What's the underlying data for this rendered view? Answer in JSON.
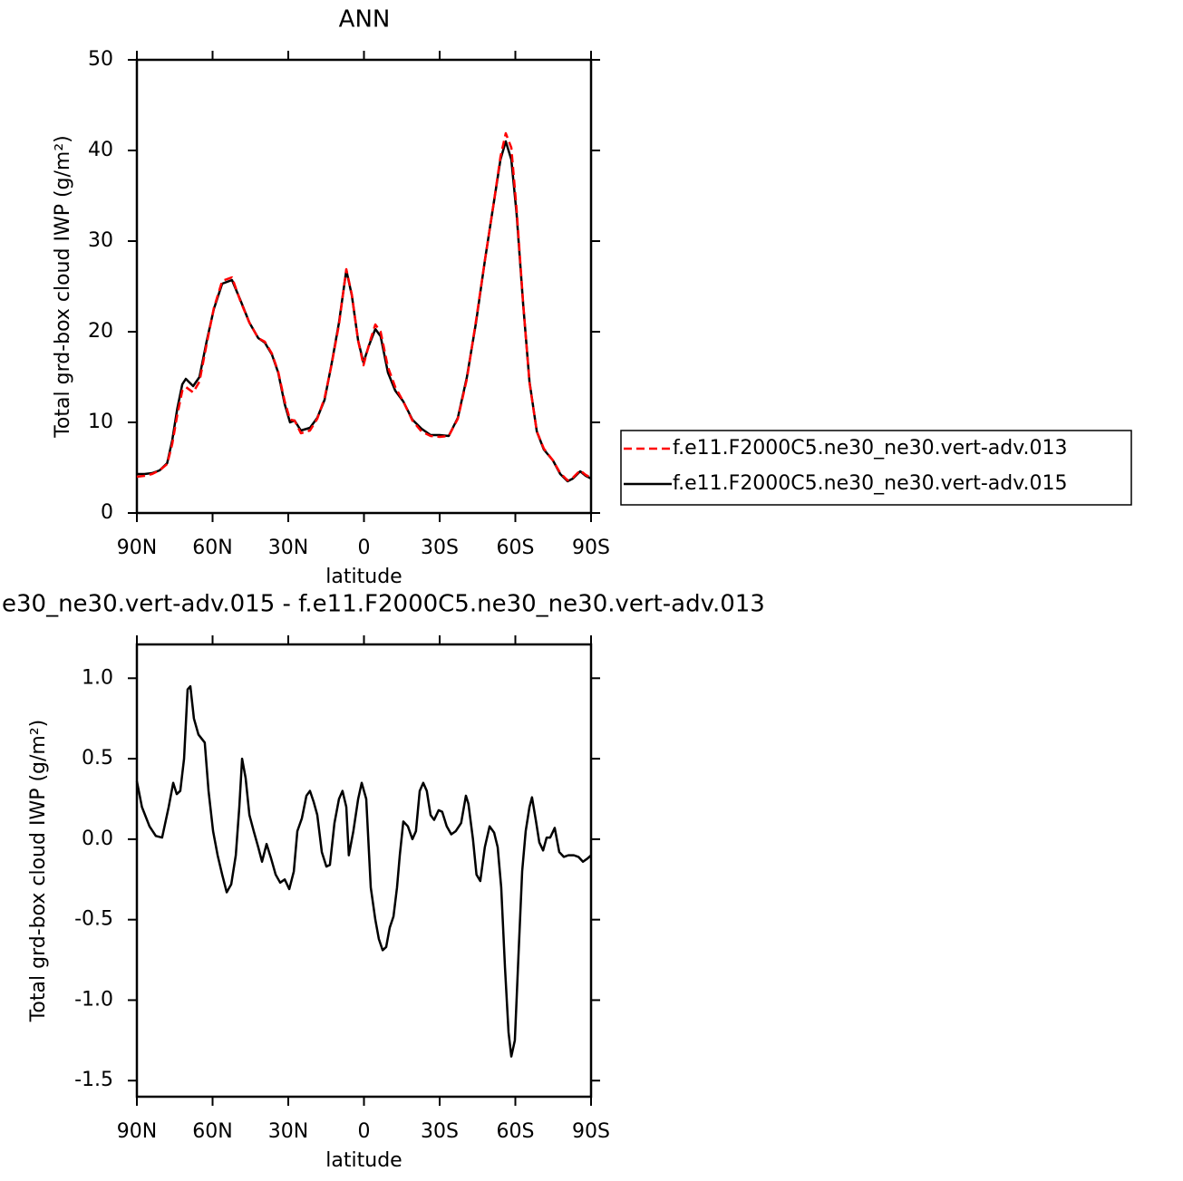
{
  "chart_data": [
    {
      "type": "line",
      "title": "ANN",
      "xlabel": "latitude",
      "ylabel": "Total grd-box cloud IWP (g/m²)",
      "xlim": [
        90,
        -90
      ],
      "xticks": [
        {
          "value": 90,
          "label": "90N"
        },
        {
          "value": 60,
          "label": "60N"
        },
        {
          "value": 30,
          "label": "30N"
        },
        0,
        {
          "value": -30,
          "label": "30S"
        },
        {
          "value": -60,
          "label": "60S"
        },
        {
          "value": -90,
          "label": "90S"
        }
      ],
      "ylim": [
        0,
        50
      ],
      "yticks": [
        0,
        10,
        20,
        30,
        40,
        50
      ],
      "legend": "right",
      "x": [
        90,
        87,
        84,
        81,
        78,
        76,
        74,
        72,
        70.6,
        67.7,
        65.2,
        62.3,
        59.5,
        56.2,
        52.3,
        49,
        45.4,
        41.9,
        39.3,
        36.5,
        34,
        31.4,
        29.3,
        27.5,
        25,
        21.4,
        18.5,
        15.6,
        12.8,
        9.9,
        7,
        4.8,
        2.3,
        0.2,
        -2,
        -4.5,
        -6.6,
        -9.5,
        -12.4,
        -15.6,
        -19.2,
        -22.8,
        -26.4,
        -30,
        -33.6,
        -37.2,
        -40.8,
        -44.4,
        -48,
        -51.6,
        -54.1,
        -56.2,
        -58.4,
        -60.5,
        -63.1,
        -65.6,
        -68.5,
        -71.3,
        -74.9,
        -77.8,
        -80.7,
        -82.8,
        -85.7,
        -87.9,
        -90
      ],
      "series": [
        {
          "name": "f.e11.F2000C5.ne30_ne30.vert-adv.013",
          "color": "#ff0000",
          "dashed": true,
          "values": [
            4.0,
            4.1,
            4.3,
            4.7,
            5.4,
            7.6,
            10.8,
            13.5,
            13.9,
            13.3,
            14.5,
            18.7,
            22.6,
            25.6,
            26.0,
            23.4,
            21.0,
            19.3,
            18.9,
            17.6,
            15.6,
            12.3,
            10.3,
            10.2,
            8.8,
            9.1,
            10.4,
            12.7,
            16.4,
            20.8,
            26.9,
            24.1,
            19.0,
            16.3,
            18.6,
            20.8,
            20.0,
            16.1,
            13.9,
            12.3,
            10.2,
            9.0,
            8.5,
            8.4,
            8.5,
            10.4,
            14.8,
            21.2,
            28.0,
            34.5,
            39.3,
            41.9,
            40.3,
            33.5,
            23.1,
            14.4,
            9.0,
            7.1,
            5.8,
            4.4,
            3.6,
            3.9,
            4.7,
            4.2,
            3.9
          ]
        },
        {
          "name": "f.e11.F2000C5.ne30_ne30.vert-adv.015",
          "color": "#000000",
          "dashed": false,
          "values": [
            4.3,
            4.3,
            4.4,
            4.7,
            5.5,
            8,
            11.5,
            14.2,
            14.8,
            14,
            15,
            19,
            22.5,
            25.3,
            25.7,
            23.5,
            21,
            19.3,
            18.8,
            17.5,
            15.5,
            12,
            10,
            10.2,
            9.1,
            9.4,
            10.5,
            12.5,
            16.5,
            21,
            26.8,
            24,
            19,
            16.6,
            18.5,
            20.3,
            19.5,
            15.5,
            13.5,
            12.3,
            10.3,
            9.3,
            8.6,
            8.6,
            8.5,
            10.5,
            15,
            21,
            28,
            34.5,
            39,
            41,
            39,
            33,
            23,
            14.5,
            9,
            7,
            5.8,
            4.3,
            3.5,
            3.8,
            4.6,
            4.1,
            3.8
          ]
        }
      ]
    },
    {
      "type": "line",
      "title": "e30_ne30.vert-adv.015 - f.e11.F2000C5.ne30_ne30.vert-adv.013",
      "xlabel": "latitude",
      "ylabel": "Total grd-box cloud IWP (g/m²)",
      "xlim": [
        90,
        -90
      ],
      "xticks": [
        {
          "value": 90,
          "label": "90N"
        },
        {
          "value": 60,
          "label": "60N"
        },
        {
          "value": 30,
          "label": "30N"
        },
        0,
        {
          "value": -30,
          "label": "30S"
        },
        {
          "value": -60,
          "label": "60S"
        },
        {
          "value": -90,
          "label": "90S"
        }
      ],
      "ylim": [
        -1.6,
        1.21
      ],
      "yticks": [
        -1.5,
        {
          "value": -1,
          "label": "-1.0"
        },
        -0.5,
        {
          "value": 0,
          "label": "0.0"
        },
        0.5,
        {
          "value": 1,
          "label": "1.0"
        }
      ],
      "x": [
        90,
        88,
        85,
        82.5,
        80,
        77.4,
        75.6,
        74.2,
        72.8,
        71.3,
        69.9,
        68.8,
        67.4,
        65.6,
        63.1,
        61.6,
        59.8,
        58,
        56.2,
        54.4,
        52.6,
        50.8,
        49.4,
        48.3,
        46.9,
        45.4,
        43.7,
        41.9,
        40.4,
        38.6,
        36.8,
        35,
        33.2,
        31.4,
        29.6,
        27.8,
        26.4,
        24.6,
        22.8,
        21.4,
        19.9,
        18.5,
        16.7,
        14.9,
        13.5,
        11.7,
        9.9,
        8.5,
        7,
        6,
        4.2,
        2.3,
        0.9,
        -0.9,
        -2.7,
        -4.5,
        -5.9,
        -7.4,
        -8.8,
        -10.2,
        -11.7,
        -13.1,
        -14.2,
        -15.6,
        -17.4,
        -19.2,
        -20.6,
        -22.1,
        -23.5,
        -24.9,
        -26.4,
        -27.8,
        -29.6,
        -31,
        -32.8,
        -34.6,
        -36.4,
        -38.5,
        -40.4,
        -41.4,
        -43.2,
        -44.6,
        -46.1,
        -47.9,
        -49.8,
        -51.6,
        -53,
        -54.4,
        -55.9,
        -57.3,
        -58.4,
        -59.8,
        -61.3,
        -62.7,
        -64.1,
        -65.6,
        -66.6,
        -68.1,
        -69.5,
        -71,
        -72.4,
        -73.8,
        -75.6,
        -77.4,
        -79.2,
        -81,
        -83.2,
        -85,
        -86.8,
        -88.6,
        -90
      ],
      "series": [
        {
          "color": "#000000",
          "dashed": false,
          "values": [
            0.36,
            0.2,
            0.08,
            0.02,
            0.01,
            0.2,
            0.35,
            0.28,
            0.3,
            0.5,
            0.93,
            0.95,
            0.75,
            0.65,
            0.6,
            0.3,
            0.05,
            -0.1,
            -0.22,
            -0.33,
            -0.28,
            -0.1,
            0.2,
            0.5,
            0.38,
            0.15,
            0.05,
            -0.05,
            -0.14,
            -0.03,
            -0.12,
            -0.22,
            -0.27,
            -0.25,
            -0.31,
            -0.2,
            0.05,
            0.13,
            0.27,
            0.3,
            0.23,
            0.15,
            -0.08,
            -0.17,
            -0.16,
            0.1,
            0.25,
            0.3,
            0.2,
            -0.1,
            0.05,
            0.25,
            0.35,
            0.25,
            -0.3,
            -0.5,
            -0.62,
            -0.69,
            -0.67,
            -0.55,
            -0.48,
            -0.3,
            -0.1,
            0.11,
            0.08,
            0.0,
            0.05,
            0.3,
            0.35,
            0.3,
            0.15,
            0.12,
            0.18,
            0.17,
            0.08,
            0.03,
            0.05,
            0.1,
            0.27,
            0.22,
            0.0,
            -0.22,
            -0.26,
            -0.05,
            0.08,
            0.04,
            -0.05,
            -0.3,
            -0.8,
            -1.2,
            -1.35,
            -1.25,
            -0.7,
            -0.2,
            0.05,
            0.2,
            0.26,
            0.12,
            -0.02,
            -0.07,
            0.01,
            0.01,
            0.07,
            -0.08,
            -0.11,
            -0.1,
            -0.1,
            -0.11,
            -0.14,
            -0.12,
            -0.1
          ]
        }
      ]
    }
  ]
}
